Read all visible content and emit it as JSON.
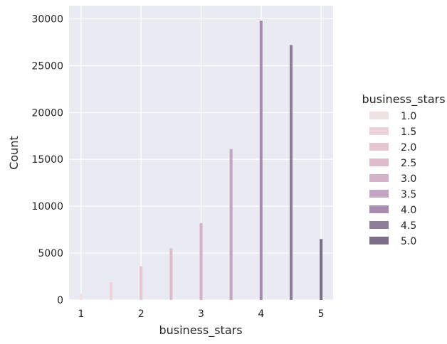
{
  "chart_data": {
    "type": "bar",
    "xlabel": "business_stars",
    "ylabel": "Count",
    "xlim": [
      0.8,
      5.2
    ],
    "ylim": [
      0,
      31400
    ],
    "xticks": [
      "1",
      "2",
      "3",
      "4",
      "5"
    ],
    "yticks": [
      "0",
      "5000",
      "10000",
      "15000",
      "20000",
      "25000",
      "30000"
    ],
    "grid": true,
    "legend": {
      "title": "business_stars",
      "placement": "right",
      "entries": [
        "1.0",
        "1.5",
        "2.0",
        "2.5",
        "3.0",
        "3.5",
        "4.0",
        "4.5",
        "5.0"
      ]
    },
    "series": [
      {
        "name": "1.0",
        "x": 1.0,
        "value": 700,
        "color": "#efe2e2"
      },
      {
        "name": "1.5",
        "x": 1.5,
        "value": 1900,
        "color": "#ebd3d9"
      },
      {
        "name": "2.0",
        "x": 2.0,
        "value": 3600,
        "color": "#e6c6d0"
      },
      {
        "name": "2.5",
        "x": 2.5,
        "value": 5500,
        "color": "#dfbccb"
      },
      {
        "name": "3.0",
        "x": 3.0,
        "value": 8200,
        "color": "#d4b2c8"
      },
      {
        "name": "3.5",
        "x": 3.5,
        "value": 16100,
        "color": "#c3a5c1"
      },
      {
        "name": "4.0",
        "x": 4.0,
        "value": 29800,
        "color": "#a88cb0"
      },
      {
        "name": "4.5",
        "x": 4.5,
        "value": 27200,
        "color": "#8e7d98"
      },
      {
        "name": "5.0",
        "x": 5.0,
        "value": 6500,
        "color": "#7b6e86"
      }
    ],
    "colors": {
      "background": "#eaeaf2",
      "grid": "#ffffff",
      "text": "#262626"
    }
  }
}
